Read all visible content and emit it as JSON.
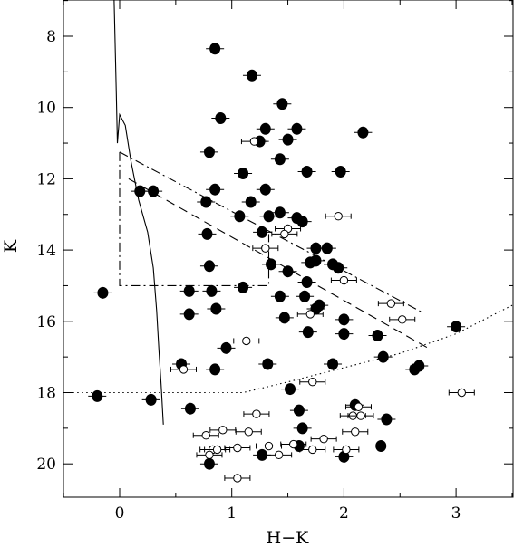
{
  "chart_data": {
    "type": "scatter",
    "title": "",
    "xlabel": "H−K",
    "ylabel": "K",
    "xlim": [
      -0.5,
      3.5
    ],
    "ylim": [
      21.0,
      7.0
    ],
    "y_inverted": true,
    "grid": false,
    "legend": "none",
    "x_ticks": [
      0,
      1,
      2,
      3
    ],
    "x_tick_labels": [
      "0",
      "1",
      "2",
      "3"
    ],
    "y_ticks": [
      8,
      10,
      12,
      14,
      16,
      18,
      20
    ],
    "y_tick_labels": [
      "8",
      "10",
      "12",
      "14",
      "16",
      "18",
      "20"
    ],
    "series": [
      {
        "marker": "filled-circle",
        "points": [
          {
            "x": 0.85,
            "y": 8.35
          },
          {
            "x": 1.18,
            "y": 9.1
          },
          {
            "x": 1.45,
            "y": 9.9
          },
          {
            "x": 0.9,
            "y": 10.3
          },
          {
            "x": 1.3,
            "y": 10.6
          },
          {
            "x": 1.58,
            "y": 10.6
          },
          {
            "x": 2.17,
            "y": 10.7
          },
          {
            "x": 1.25,
            "y": 10.95
          },
          {
            "x": 1.5,
            "y": 10.9
          },
          {
            "x": 0.8,
            "y": 11.25
          },
          {
            "x": 1.43,
            "y": 11.45
          },
          {
            "x": 1.1,
            "y": 11.85
          },
          {
            "x": 1.67,
            "y": 11.8
          },
          {
            "x": 1.97,
            "y": 11.8
          },
          {
            "x": 0.18,
            "y": 12.35
          },
          {
            "x": 0.3,
            "y": 12.35
          },
          {
            "x": 0.85,
            "y": 12.3
          },
          {
            "x": 1.3,
            "y": 12.3
          },
          {
            "x": 0.77,
            "y": 12.65
          },
          {
            "x": 1.17,
            "y": 12.65
          },
          {
            "x": 1.07,
            "y": 13.05
          },
          {
            "x": 1.33,
            "y": 13.05
          },
          {
            "x": 1.43,
            "y": 12.95
          },
          {
            "x": 1.58,
            "y": 13.1
          },
          {
            "x": 1.63,
            "y": 13.2
          },
          {
            "x": 0.78,
            "y": 13.55
          },
          {
            "x": 1.27,
            "y": 13.5
          },
          {
            "x": 1.75,
            "y": 13.95
          },
          {
            "x": 1.85,
            "y": 13.95
          },
          {
            "x": 1.35,
            "y": 14.4
          },
          {
            "x": 0.8,
            "y": 14.45
          },
          {
            "x": 1.7,
            "y": 14.35
          },
          {
            "x": 1.75,
            "y": 14.3
          },
          {
            "x": 1.9,
            "y": 14.4
          },
          {
            "x": 1.95,
            "y": 14.5
          },
          {
            "x": 1.5,
            "y": 14.6
          },
          {
            "x": 1.67,
            "y": 14.9
          },
          {
            "x": 1.1,
            "y": 15.05
          },
          {
            "x": -0.15,
            "y": 15.2
          },
          {
            "x": 0.62,
            "y": 15.15
          },
          {
            "x": 0.82,
            "y": 15.15
          },
          {
            "x": 1.43,
            "y": 15.3
          },
          {
            "x": 1.65,
            "y": 15.3
          },
          {
            "x": 1.78,
            "y": 15.55
          },
          {
            "x": 1.75,
            "y": 15.65
          },
          {
            "x": 0.86,
            "y": 15.65
          },
          {
            "x": 0.62,
            "y": 15.8
          },
          {
            "x": 1.47,
            "y": 15.9
          },
          {
            "x": 2.0,
            "y": 15.95
          },
          {
            "x": 3.0,
            "y": 16.15
          },
          {
            "x": 1.68,
            "y": 16.3
          },
          {
            "x": 2.0,
            "y": 16.35
          },
          {
            "x": 2.3,
            "y": 16.4
          },
          {
            "x": 0.95,
            "y": 16.75
          },
          {
            "x": 2.35,
            "y": 17.0
          },
          {
            "x": 1.32,
            "y": 17.2
          },
          {
            "x": 1.9,
            "y": 17.2
          },
          {
            "x": 0.55,
            "y": 17.2
          },
          {
            "x": 2.67,
            "y": 17.25
          },
          {
            "x": 2.63,
            "y": 17.35
          },
          {
            "x": 0.85,
            "y": 17.35
          },
          {
            "x": 1.52,
            "y": 17.9
          },
          {
            "x": -0.2,
            "y": 18.1
          },
          {
            "x": 0.28,
            "y": 18.2
          },
          {
            "x": 2.1,
            "y": 18.35
          },
          {
            "x": 0.63,
            "y": 18.45
          },
          {
            "x": 1.6,
            "y": 18.5
          },
          {
            "x": 2.38,
            "y": 18.75
          },
          {
            "x": 1.63,
            "y": 19.0
          },
          {
            "x": 1.6,
            "y": 19.5
          },
          {
            "x": 2.33,
            "y": 19.5
          },
          {
            "x": 1.27,
            "y": 19.75
          },
          {
            "x": 2.0,
            "y": 19.8
          },
          {
            "x": 0.8,
            "y": 20.0
          }
        ]
      },
      {
        "marker": "open-circle-with-bar",
        "points": [
          {
            "x": 1.2,
            "y": 10.95
          },
          {
            "x": 1.95,
            "y": 13.05
          },
          {
            "x": 1.5,
            "y": 13.4
          },
          {
            "x": 1.47,
            "y": 13.55
          },
          {
            "x": 1.3,
            "y": 13.95
          },
          {
            "x": 2.0,
            "y": 14.85
          },
          {
            "x": 2.42,
            "y": 15.5
          },
          {
            "x": 1.7,
            "y": 15.8
          },
          {
            "x": 2.52,
            "y": 15.95
          },
          {
            "x": 1.13,
            "y": 16.55
          },
          {
            "x": 0.57,
            "y": 17.35
          },
          {
            "x": 1.72,
            "y": 17.7
          },
          {
            "x": 3.05,
            "y": 18.0
          },
          {
            "x": 2.13,
            "y": 18.4
          },
          {
            "x": 1.22,
            "y": 18.6
          },
          {
            "x": 2.08,
            "y": 18.65
          },
          {
            "x": 2.15,
            "y": 18.65
          },
          {
            "x": 0.92,
            "y": 19.05
          },
          {
            "x": 1.15,
            "y": 19.1
          },
          {
            "x": 2.1,
            "y": 19.1
          },
          {
            "x": 0.77,
            "y": 19.2
          },
          {
            "x": 1.82,
            "y": 19.3
          },
          {
            "x": 1.33,
            "y": 19.5
          },
          {
            "x": 1.55,
            "y": 19.45
          },
          {
            "x": 1.05,
            "y": 19.55
          },
          {
            "x": 0.83,
            "y": 19.6
          },
          {
            "x": 0.87,
            "y": 19.6
          },
          {
            "x": 1.72,
            "y": 19.6
          },
          {
            "x": 2.02,
            "y": 19.6
          },
          {
            "x": 0.8,
            "y": 19.75
          },
          {
            "x": 1.42,
            "y": 19.75
          },
          {
            "x": 1.05,
            "y": 20.4
          }
        ]
      }
    ],
    "lines": [
      {
        "style": "solid",
        "points": [
          {
            "x": -0.05,
            "y": 6.9
          },
          {
            "x": -0.03,
            "y": 9.6
          },
          {
            "x": -0.02,
            "y": 11.0
          },
          {
            "x": 0.0,
            "y": 10.2
          },
          {
            "x": 0.05,
            "y": 10.5
          },
          {
            "x": 0.1,
            "y": 11.5
          },
          {
            "x": 0.17,
            "y": 12.6
          },
          {
            "x": 0.25,
            "y": 13.5
          },
          {
            "x": 0.3,
            "y": 14.5
          },
          {
            "x": 0.33,
            "y": 15.7
          },
          {
            "x": 0.35,
            "y": 16.8
          },
          {
            "x": 0.37,
            "y": 17.8
          },
          {
            "x": 0.39,
            "y": 18.9
          }
        ]
      },
      {
        "style": "dashed",
        "points": [
          {
            "x": 0.08,
            "y": 12.0
          },
          {
            "x": 2.75,
            "y": 16.75
          }
        ]
      },
      {
        "style": "dash-dot",
        "points": [
          {
            "x": 0.0,
            "y": 11.25
          },
          {
            "x": 2.7,
            "y": 15.75
          },
          {
            "x": 2.7,
            "y": 15.75
          }
        ]
      },
      {
        "style": "dash-dot",
        "points": [
          {
            "x": 0.0,
            "y": 11.25
          },
          {
            "x": 0.0,
            "y": 15.0
          },
          {
            "x": 1.33,
            "y": 15.0
          },
          {
            "x": 1.33,
            "y": 13.55
          }
        ]
      },
      {
        "style": "dotted",
        "points": [
          {
            "x": -0.5,
            "y": 18.0
          },
          {
            "x": 1.1,
            "y": 18.0
          },
          {
            "x": 1.5,
            "y": 17.7
          },
          {
            "x": 2.0,
            "y": 17.3
          },
          {
            "x": 2.5,
            "y": 16.9
          },
          {
            "x": 3.0,
            "y": 16.35
          },
          {
            "x": 3.5,
            "y": 15.55
          }
        ]
      }
    ]
  }
}
